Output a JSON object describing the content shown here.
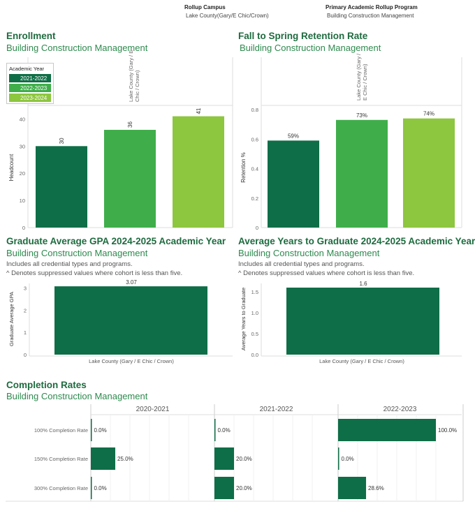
{
  "filters": {
    "campus_label": "Rollup Campus",
    "campus_value": "Lake County(Gary/E Chic/Crown)",
    "program_label": "Primary Academic Rollup Program",
    "program_value": "Building Construction Management"
  },
  "colors": {
    "dark": "#0e6e47",
    "mid": "#3fae4a",
    "light": "#8dc63f",
    "title": "#1e6b3f"
  },
  "enrollment": {
    "title": "Enrollment",
    "subtitle": "Building Construction Management",
    "legend_title": "Academic Year",
    "legend": [
      "2021-2022",
      "2022-2023",
      "2023-2024"
    ],
    "panel_header": "Lake County (Gary / E Chic / Crown)"
  },
  "retention": {
    "title": "Fall to Spring Retention Rate",
    "subtitle": "Building Construction Management",
    "panel_header": "Lake County (Gary / E Chic / Crown)"
  },
  "gpa": {
    "title": "Graduate Average GPA 2024-2025 Academic Year",
    "subtitle": "Building Construction Management",
    "note1": "Includes all credential types and programs.",
    "note2": "^ Denotes suppressed values where cohort is less than five."
  },
  "years": {
    "title": "Average Years to Graduate 2024-2025 Academic Year",
    "subtitle": "Building Construction Management",
    "note1": "Includes all credential types and programs.",
    "note2": "^ Denotes suppressed values where cohort is less than five."
  },
  "completion": {
    "title": "Completion Rates",
    "subtitle": "Building Construction Management"
  },
  "chart_data": [
    {
      "type": "bar",
      "id": "enrollment",
      "categories": [
        "2021-2022",
        "2022-2023",
        "2023-2024"
      ],
      "values": [
        30,
        36,
        41
      ],
      "labels": [
        "30",
        "36",
        "41"
      ],
      "ylabel": "Headcount",
      "ylim": [
        0,
        45
      ],
      "yticks": [
        0,
        10,
        20,
        30,
        40
      ],
      "colors": [
        "#0e6e47",
        "#3fae4a",
        "#8dc63f"
      ]
    },
    {
      "type": "bar",
      "id": "retention",
      "categories": [
        "2021-2022",
        "2022-2023",
        "2023-2024"
      ],
      "values": [
        0.59,
        0.73,
        0.74
      ],
      "labels": [
        "59%",
        "73%",
        "74%"
      ],
      "ylabel": "Retention %",
      "ylim": [
        0,
        0.8
      ],
      "yticks": [
        0.0,
        0.2,
        0.4,
        0.6,
        0.8
      ],
      "colors": [
        "#0e6e47",
        "#3fae4a",
        "#8dc63f"
      ]
    },
    {
      "type": "bar",
      "id": "gpa",
      "categories": [
        "Lake County (Gary / E Chic / Crown)"
      ],
      "values": [
        3.07
      ],
      "labels": [
        "3.07"
      ],
      "ylabel": "Graduate Average GPA",
      "ylim": [
        0,
        3.2
      ],
      "yticks": [
        0,
        1,
        2,
        3
      ]
    },
    {
      "type": "bar",
      "id": "years",
      "categories": [
        "Lake County (Gary / E Chic / Crown)"
      ],
      "values": [
        1.6
      ],
      "labels": [
        "1.6"
      ],
      "ylabel": "Average Years to Graduate",
      "ylim": [
        0,
        1.7
      ],
      "yticks": [
        "0.0",
        "0.5",
        "1.0",
        "1.5"
      ]
    },
    {
      "type": "bar",
      "id": "completion",
      "orientation": "horizontal",
      "panels": [
        "2020-2021",
        "2021-2022",
        "2022-2023"
      ],
      "rows": [
        "100% Completion Rate",
        "150% Completion Rate",
        "300% Completion Rate"
      ],
      "values": [
        [
          0.0,
          25.0,
          0.0
        ],
        [
          0.0,
          20.0,
          20.0
        ],
        [
          100.0,
          0.0,
          28.6
        ]
      ],
      "labels": [
        [
          "0.0%",
          "25.0%",
          "0.0%"
        ],
        [
          "0.0%",
          "20.0%",
          "20.0%"
        ],
        [
          "100.0%",
          "0.0%",
          "28.6%"
        ]
      ],
      "xlim": [
        0,
        100
      ]
    }
  ]
}
